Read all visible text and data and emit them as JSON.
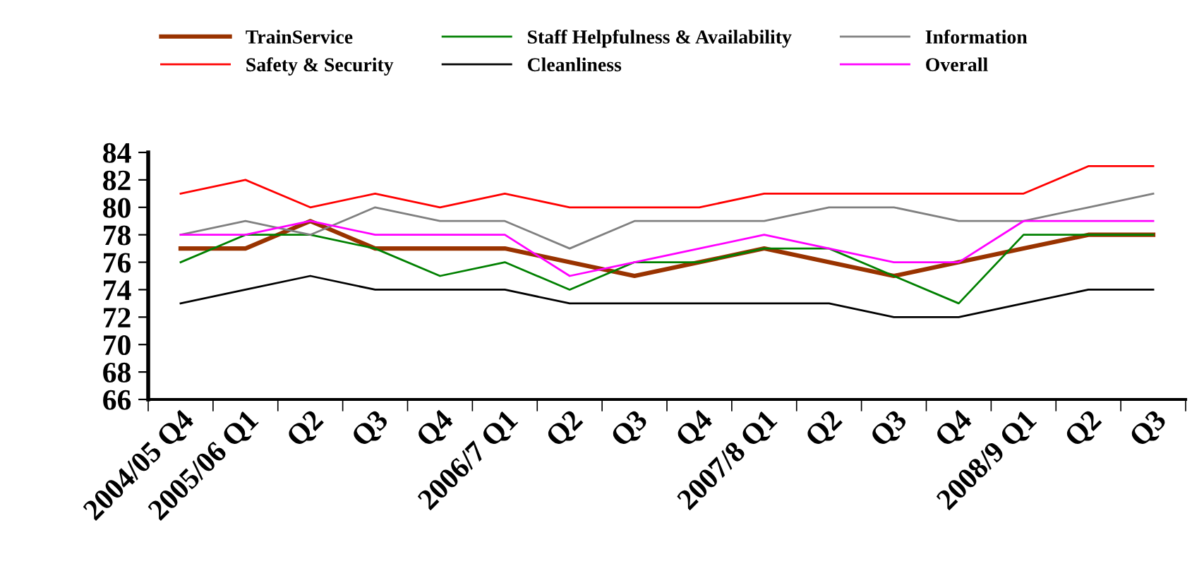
{
  "chart_data": {
    "type": "line",
    "categories": [
      "2004/05 Q4",
      "2005/06 Q1",
      "Q2",
      "Q3",
      "Q4",
      "2006/7 Q1",
      "Q2",
      "Q3",
      "Q4",
      "2007/8 Q1",
      "Q2",
      "Q3",
      "Q4",
      "2008/9 Q1",
      "Q2",
      "Q3"
    ],
    "series": [
      {
        "name": "TrainService",
        "color": "#993300",
        "values": [
          77,
          77,
          79,
          77,
          77,
          77,
          76,
          75,
          76,
          77,
          76,
          75,
          76,
          77,
          78,
          78
        ]
      },
      {
        "name": "Safety & Security",
        "color": "#ff0000",
        "values": [
          81,
          82,
          80,
          81,
          80,
          81,
          80,
          80,
          80,
          81,
          81,
          81,
          81,
          81,
          83,
          83
        ]
      },
      {
        "name": "Staff Helpfulness & Availability",
        "color": "#008000",
        "values": [
          76,
          78,
          78,
          77,
          75,
          76,
          74,
          76,
          76,
          77,
          77,
          75,
          73,
          78,
          78,
          78
        ]
      },
      {
        "name": "Cleanliness",
        "color": "#000000",
        "values": [
          73,
          74,
          75,
          74,
          74,
          74,
          73,
          73,
          73,
          73,
          73,
          72,
          72,
          73,
          74,
          74
        ]
      },
      {
        "name": "Information",
        "color": "#808080",
        "values": [
          78,
          79,
          78,
          80,
          79,
          79,
          77,
          79,
          79,
          79,
          80,
          80,
          79,
          79,
          80,
          81
        ]
      },
      {
        "name": "Overall",
        "color": "#ff00ff",
        "values": [
          78,
          78,
          79,
          78,
          78,
          78,
          75,
          76,
          77,
          78,
          77,
          76,
          76,
          79,
          79,
          79
        ]
      }
    ],
    "ylim": [
      66,
      84
    ],
    "yticks": [
      66,
      68,
      70,
      72,
      74,
      76,
      78,
      80,
      82,
      84
    ],
    "grid": false,
    "legend": "top",
    "marker": "none",
    "line_style": "solid"
  }
}
